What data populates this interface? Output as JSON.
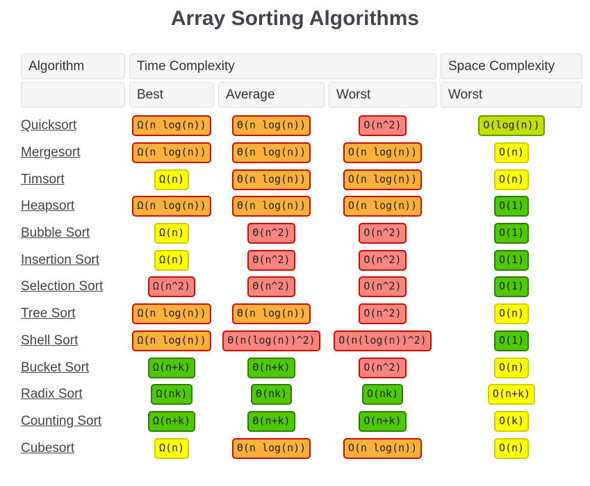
{
  "title": "Array Sorting Algorithms",
  "header": {
    "algorithm": "Algorithm",
    "time_complexity": "Time Complexity",
    "space_complexity": "Space Complexity",
    "best": "Best",
    "average": "Average",
    "worst_time": "Worst",
    "worst_space": "Worst"
  },
  "colors": {
    "excellent_green": "#4fc805",
    "good_yellowgreen": "#c3df01",
    "fair_yellow": "#ffff00",
    "bad_orange": "#fcb03c",
    "horrible_pink": "#f8867f",
    "red_border": "#d10b00",
    "header_bg": "#f5f5f5",
    "title_color": "#40464c"
  },
  "rows": [
    {
      "name": "Quicksort",
      "best": {
        "text": "Ω(n log(n))",
        "level": "bad"
      },
      "average": {
        "text": "Θ(n log(n))",
        "level": "bad"
      },
      "worst": {
        "text": "O(n^2)",
        "level": "horrible"
      },
      "space": {
        "text": "O(log(n))",
        "level": "good"
      }
    },
    {
      "name": "Mergesort",
      "best": {
        "text": "Ω(n log(n))",
        "level": "bad"
      },
      "average": {
        "text": "Θ(n log(n))",
        "level": "bad"
      },
      "worst": {
        "text": "O(n log(n))",
        "level": "bad"
      },
      "space": {
        "text": "O(n)",
        "level": "fair"
      }
    },
    {
      "name": "Timsort",
      "best": {
        "text": "Ω(n)",
        "level": "fair"
      },
      "average": {
        "text": "Θ(n log(n))",
        "level": "bad"
      },
      "worst": {
        "text": "O(n log(n))",
        "level": "bad"
      },
      "space": {
        "text": "O(n)",
        "level": "fair"
      }
    },
    {
      "name": "Heapsort",
      "best": {
        "text": "Ω(n log(n))",
        "level": "bad"
      },
      "average": {
        "text": "Θ(n log(n))",
        "level": "bad"
      },
      "worst": {
        "text": "O(n log(n))",
        "level": "bad"
      },
      "space": {
        "text": "O(1)",
        "level": "excellent"
      }
    },
    {
      "name": "Bubble Sort",
      "best": {
        "text": "Ω(n)",
        "level": "fair"
      },
      "average": {
        "text": "Θ(n^2)",
        "level": "horrible"
      },
      "worst": {
        "text": "O(n^2)",
        "level": "horrible"
      },
      "space": {
        "text": "O(1)",
        "level": "excellent"
      }
    },
    {
      "name": "Insertion Sort",
      "best": {
        "text": "Ω(n)",
        "level": "fair"
      },
      "average": {
        "text": "Θ(n^2)",
        "level": "horrible"
      },
      "worst": {
        "text": "O(n^2)",
        "level": "horrible"
      },
      "space": {
        "text": "O(1)",
        "level": "excellent"
      }
    },
    {
      "name": "Selection Sort",
      "best": {
        "text": "Ω(n^2)",
        "level": "horrible"
      },
      "average": {
        "text": "Θ(n^2)",
        "level": "horrible"
      },
      "worst": {
        "text": "O(n^2)",
        "level": "horrible"
      },
      "space": {
        "text": "O(1)",
        "level": "excellent"
      }
    },
    {
      "name": "Tree Sort",
      "best": {
        "text": "Ω(n log(n))",
        "level": "bad"
      },
      "average": {
        "text": "Θ(n log(n))",
        "level": "bad"
      },
      "worst": {
        "text": "O(n^2)",
        "level": "horrible"
      },
      "space": {
        "text": "O(n)",
        "level": "fair"
      }
    },
    {
      "name": "Shell Sort",
      "best": {
        "text": "Ω(n log(n))",
        "level": "bad"
      },
      "average": {
        "text": "Θ(n(log(n))^2)",
        "level": "horrible"
      },
      "worst": {
        "text": "O(n(log(n))^2)",
        "level": "horrible"
      },
      "space": {
        "text": "O(1)",
        "level": "excellent"
      }
    },
    {
      "name": "Bucket Sort",
      "best": {
        "text": "Ω(n+k)",
        "level": "excellent"
      },
      "average": {
        "text": "Θ(n+k)",
        "level": "excellent"
      },
      "worst": {
        "text": "O(n^2)",
        "level": "horrible"
      },
      "space": {
        "text": "O(n)",
        "level": "fair"
      }
    },
    {
      "name": "Radix Sort",
      "best": {
        "text": "Ω(nk)",
        "level": "excellent"
      },
      "average": {
        "text": "Θ(nk)",
        "level": "excellent"
      },
      "worst": {
        "text": "O(nk)",
        "level": "excellent"
      },
      "space": {
        "text": "O(n+k)",
        "level": "fair"
      }
    },
    {
      "name": "Counting Sort",
      "best": {
        "text": "Ω(n+k)",
        "level": "excellent"
      },
      "average": {
        "text": "Θ(n+k)",
        "level": "excellent"
      },
      "worst": {
        "text": "O(n+k)",
        "level": "excellent"
      },
      "space": {
        "text": "O(k)",
        "level": "fair"
      }
    },
    {
      "name": "Cubesort",
      "best": {
        "text": "Ω(n)",
        "level": "fair"
      },
      "average": {
        "text": "Θ(n log(n))",
        "level": "bad"
      },
      "worst": {
        "text": "O(n log(n))",
        "level": "bad"
      },
      "space": {
        "text": "O(n)",
        "level": "fair"
      }
    }
  ]
}
